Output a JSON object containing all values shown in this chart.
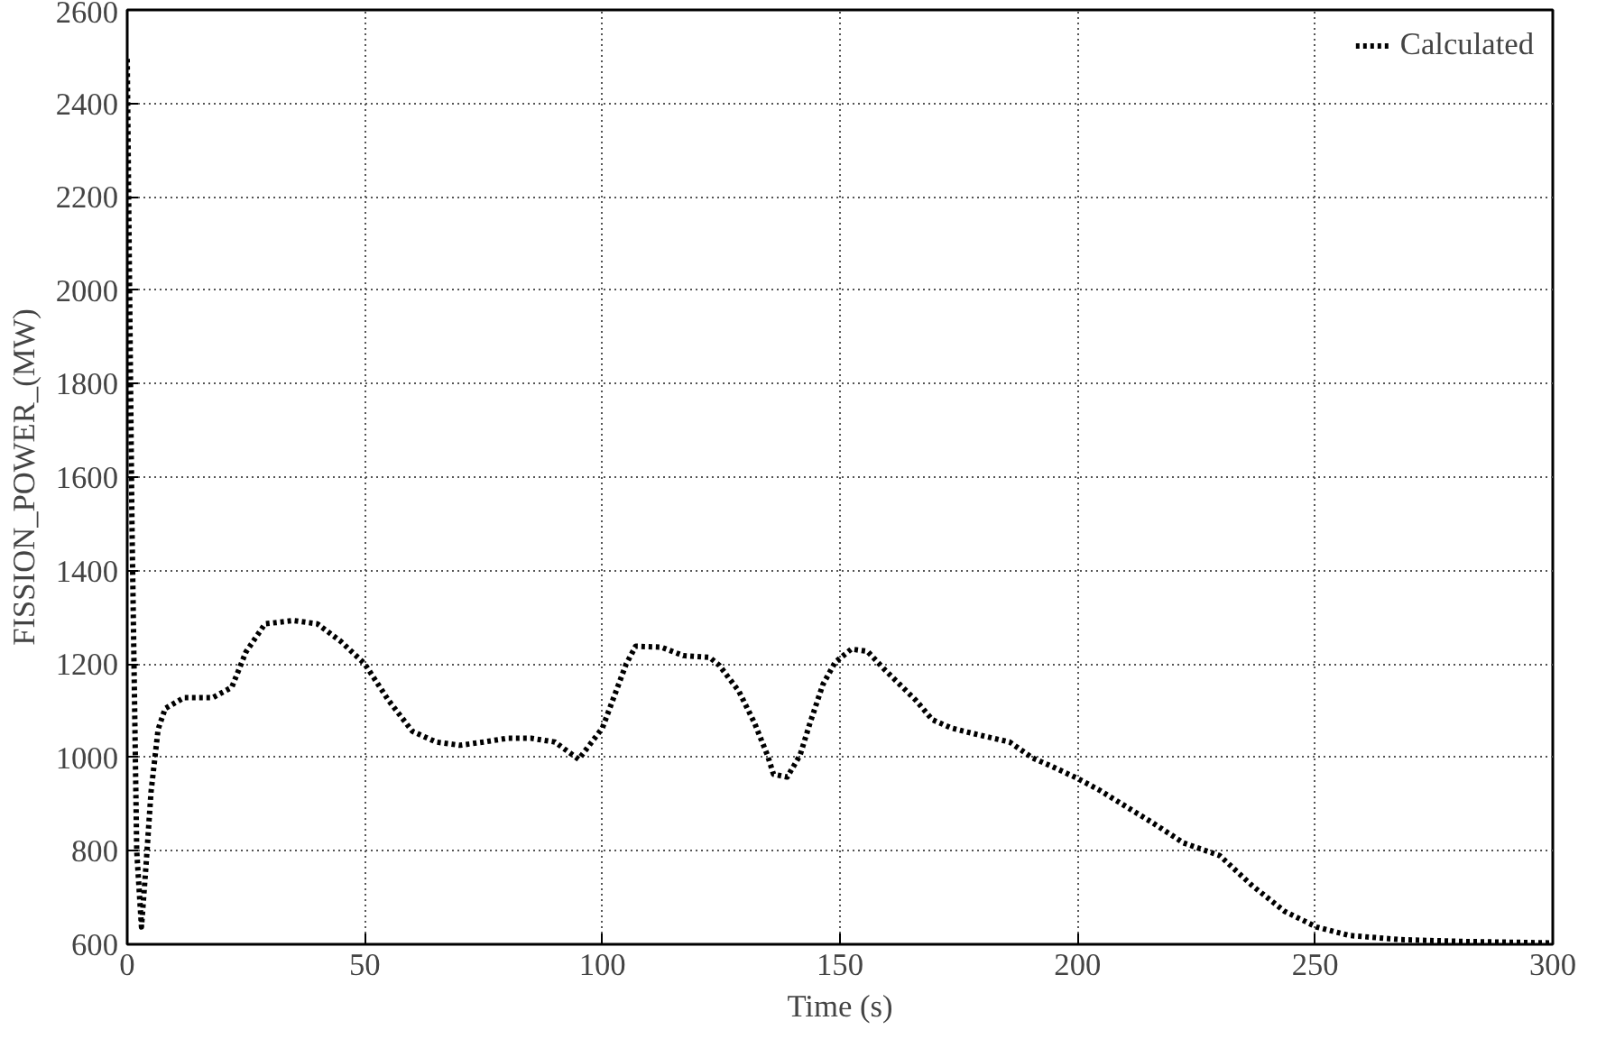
{
  "chart_data": {
    "type": "line",
    "xlabel": "Time (s)",
    "ylabel": "FISSION_POWER_(MW)",
    "xlim": [
      0,
      300
    ],
    "ylim": [
      600,
      2600
    ],
    "xticks": [
      0,
      50,
      100,
      150,
      200,
      250,
      300
    ],
    "yticks": [
      600,
      800,
      1000,
      1200,
      1400,
      1600,
      1800,
      2000,
      2200,
      2400,
      2600
    ],
    "grid": true,
    "legend": "top right",
    "line_style": "dotted",
    "marker": "none",
    "series": [
      {
        "name": "Calculated",
        "color": "#000000",
        "x": [
          0,
          1,
          2,
          3,
          4,
          5,
          6.5,
          8,
          12,
          18,
          22,
          25,
          29,
          35,
          40,
          45,
          50,
          55,
          60,
          65,
          70,
          75,
          80,
          85,
          90,
          95,
          100,
          105,
          107,
          112.4,
          117,
          122.6,
          124.6,
          128.7,
          132,
          134.8,
          136,
          138.9,
          141.6,
          143.7,
          146.4,
          149,
          152.4,
          155.8,
          159.2,
          162.6,
          166,
          169.4,
          173.4,
          178.9,
          185.7,
          190.5,
          195.2,
          200,
          204.6,
          210,
          215.5,
          222.3,
          229.9,
          236.7,
          243.5,
          250.3,
          257.1,
          268,
          281.6,
          300
        ],
        "values": [
          2495,
          1500,
          800,
          637,
          775,
          925,
          1060,
          1105,
          1128,
          1128,
          1150,
          1226,
          1286,
          1293,
          1286,
          1248,
          1200,
          1122,
          1056,
          1033,
          1026,
          1033,
          1041,
          1041,
          1033,
          996,
          1063,
          1200,
          1238,
          1236,
          1218,
          1214,
          1197,
          1142,
          1074,
          1003,
          964,
          958,
          1005,
          1074,
          1156,
          1204,
          1232,
          1227,
          1190,
          1156,
          1122,
          1081,
          1063,
          1049,
          1033,
          999,
          978,
          955,
          930,
          896,
          862,
          817,
          790,
          726,
          671,
          637,
          619,
          610,
          606,
          603
        ]
      }
    ]
  }
}
